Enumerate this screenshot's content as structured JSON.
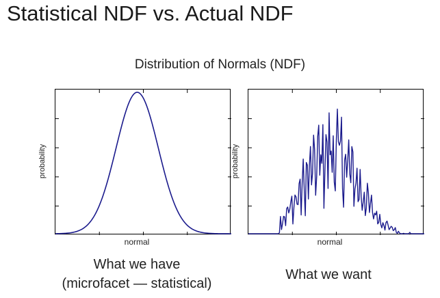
{
  "slide": {
    "title": "Statistical NDF vs. Actual NDF",
    "heading": "Distribution of Normals (NDF)"
  },
  "plots": {
    "left": {
      "ylabel": "probability",
      "xlabel": "normal",
      "caption_line1": "What we have",
      "caption_line2": "(microfacet — statistical)"
    },
    "right": {
      "ylabel": "probability",
      "xlabel": "normal",
      "caption": "What we want"
    }
  },
  "colors": {
    "curve": "#1a1a8c",
    "frame": "#000000"
  }
}
